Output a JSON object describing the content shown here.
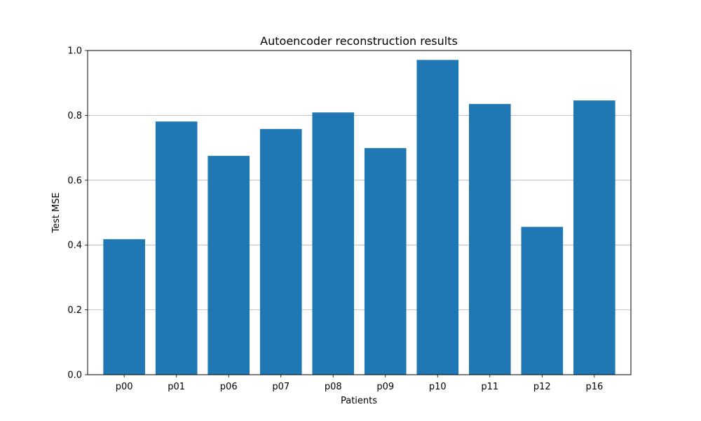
{
  "chart_data": {
    "type": "bar",
    "title": "Autoencoder reconstruction results",
    "xlabel": "Patients",
    "ylabel": "Test MSE",
    "categories": [
      "p00",
      "p01",
      "p06",
      "p07",
      "p08",
      "p09",
      "p10",
      "p11",
      "p12",
      "p16"
    ],
    "values": [
      0.418,
      0.781,
      0.675,
      0.758,
      0.809,
      0.699,
      0.971,
      0.835,
      0.456,
      0.846
    ],
    "ylim": [
      0,
      1.0
    ],
    "yticks": [
      "0.0",
      "0.2",
      "0.4",
      "0.6",
      "0.8",
      "1.0"
    ],
    "grid": "y",
    "legend": "none",
    "bar_color": "#1f77b4",
    "grid_color": "#b0b0b0"
  }
}
